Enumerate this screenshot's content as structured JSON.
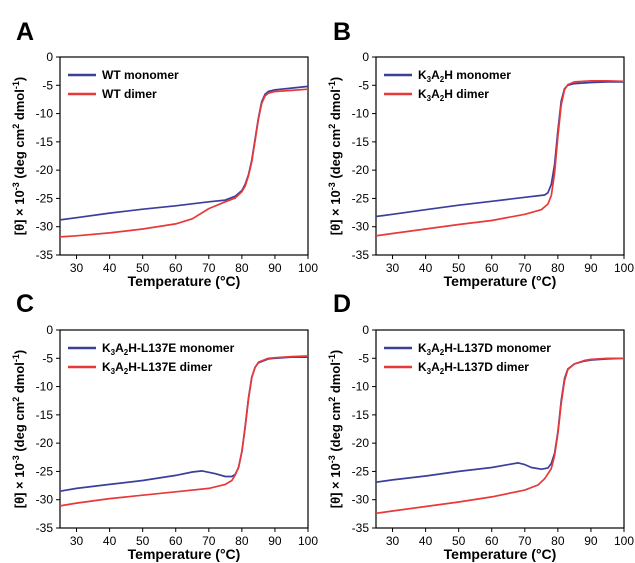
{
  "figure": {
    "ylabel_parts": {
      "theta": "[θ]",
      "times_ten": " × 10",
      "exp": "-3",
      "unit_open": " (deg cm",
      "cm_exp": "2",
      "unit_mid": " dmol",
      "mol_exp": "-1",
      "unit_close": ")"
    }
  },
  "chart_data": [
    {
      "type": "line",
      "panel_label": "A",
      "xlabel": "Temperature (°C)",
      "xlim": [
        25,
        100
      ],
      "ylim": [
        -35,
        0
      ],
      "x_ticks": [
        30,
        40,
        50,
        60,
        70,
        80,
        90,
        100
      ],
      "y_ticks": [
        0,
        -5,
        -10,
        -15,
        -20,
        -25,
        -30,
        -35
      ],
      "legend_position": "top-left",
      "series": [
        {
          "legend_parts": [
            "WT monomer"
          ],
          "color": "#3a3f9c",
          "points": [
            [
              25,
              -28.8
            ],
            [
              30,
              -28.4
            ],
            [
              40,
              -27.6
            ],
            [
              50,
              -26.9
            ],
            [
              60,
              -26.3
            ],
            [
              70,
              -25.6
            ],
            [
              75,
              -25.3
            ],
            [
              78,
              -24.6
            ],
            [
              80,
              -23.6
            ],
            [
              81,
              -22.5
            ],
            [
              82,
              -20.8
            ],
            [
              83,
              -18.2
            ],
            [
              84,
              -14.5
            ],
            [
              85,
              -10.8
            ],
            [
              86,
              -7.9
            ],
            [
              87,
              -6.6
            ],
            [
              88,
              -6.1
            ],
            [
              90,
              -5.8
            ],
            [
              95,
              -5.5
            ],
            [
              100,
              -5.2
            ]
          ]
        },
        {
          "legend_parts": [
            "WT dimer"
          ],
          "color": "#e8393a",
          "points": [
            [
              25,
              -31.8
            ],
            [
              30,
              -31.6
            ],
            [
              40,
              -31.1
            ],
            [
              50,
              -30.4
            ],
            [
              60,
              -29.5
            ],
            [
              65,
              -28.6
            ],
            [
              70,
              -26.8
            ],
            [
              75,
              -25.6
            ],
            [
              78,
              -24.9
            ],
            [
              80,
              -23.8
            ],
            [
              81,
              -22.8
            ],
            [
              82,
              -21.0
            ],
            [
              83,
              -18.5
            ],
            [
              84,
              -14.8
            ],
            [
              85,
              -11.0
            ],
            [
              86,
              -8.2
            ],
            [
              87,
              -6.9
            ],
            [
              88,
              -6.4
            ],
            [
              90,
              -6.1
            ],
            [
              95,
              -5.9
            ],
            [
              100,
              -5.7
            ]
          ]
        }
      ]
    },
    {
      "type": "line",
      "panel_label": "B",
      "xlabel": "Temperature (°C)",
      "xlim": [
        25,
        100
      ],
      "ylim": [
        -35,
        0
      ],
      "x_ticks": [
        30,
        40,
        50,
        60,
        70,
        80,
        90,
        100
      ],
      "y_ticks": [
        0,
        -5,
        -10,
        -15,
        -20,
        -25,
        -30,
        -35
      ],
      "legend_position": "top-left",
      "series": [
        {
          "legend_parts": [
            "K",
            "3",
            "A",
            "2",
            "H monomer"
          ],
          "color": "#3a3f9c",
          "points": [
            [
              25,
              -28.2
            ],
            [
              30,
              -27.8
            ],
            [
              40,
              -27.0
            ],
            [
              50,
              -26.2
            ],
            [
              60,
              -25.5
            ],
            [
              70,
              -24.8
            ],
            [
              76,
              -24.4
            ],
            [
              77,
              -24.0
            ],
            [
              78,
              -22.5
            ],
            [
              79,
              -19.0
            ],
            [
              80,
              -13.0
            ],
            [
              81,
              -7.8
            ],
            [
              82,
              -5.6
            ],
            [
              83,
              -5.0
            ],
            [
              85,
              -4.7
            ],
            [
              90,
              -4.5
            ],
            [
              95,
              -4.4
            ],
            [
              100,
              -4.4
            ]
          ]
        },
        {
          "legend_parts": [
            "K",
            "3",
            "A",
            "2",
            "H dimer"
          ],
          "color": "#e8393a",
          "points": [
            [
              25,
              -31.6
            ],
            [
              30,
              -31.2
            ],
            [
              40,
              -30.4
            ],
            [
              50,
              -29.6
            ],
            [
              60,
              -28.9
            ],
            [
              70,
              -27.8
            ],
            [
              75,
              -27.0
            ],
            [
              77,
              -26.0
            ],
            [
              78,
              -24.5
            ],
            [
              79,
              -20.5
            ],
            [
              80,
              -14.0
            ],
            [
              81,
              -8.5
            ],
            [
              82,
              -5.8
            ],
            [
              83,
              -4.9
            ],
            [
              85,
              -4.4
            ],
            [
              90,
              -4.2
            ],
            [
              95,
              -4.2
            ],
            [
              100,
              -4.3
            ]
          ]
        }
      ]
    },
    {
      "type": "line",
      "panel_label": "C",
      "xlabel": "Temperature (°C)",
      "xlim": [
        25,
        100
      ],
      "ylim": [
        -35,
        0
      ],
      "x_ticks": [
        30,
        40,
        50,
        60,
        70,
        80,
        90,
        100
      ],
      "y_ticks": [
        0,
        -5,
        -10,
        -15,
        -20,
        -25,
        -30,
        -35
      ],
      "legend_position": "top-left",
      "series": [
        {
          "legend_parts": [
            "K",
            "3",
            "A",
            "2",
            "H-L137E monomer"
          ],
          "color": "#3a3f9c",
          "points": [
            [
              25,
              -28.5
            ],
            [
              30,
              -28.0
            ],
            [
              40,
              -27.3
            ],
            [
              50,
              -26.6
            ],
            [
              60,
              -25.7
            ],
            [
              65,
              -25.1
            ],
            [
              68,
              -24.9
            ],
            [
              72,
              -25.4
            ],
            [
              75,
              -25.9
            ],
            [
              77,
              -25.9
            ],
            [
              78,
              -25.5
            ],
            [
              79,
              -24.3
            ],
            [
              80,
              -21.5
            ],
            [
              81,
              -17.0
            ],
            [
              82,
              -12.0
            ],
            [
              83,
              -8.3
            ],
            [
              84,
              -6.6
            ],
            [
              85,
              -5.8
            ],
            [
              88,
              -5.1
            ],
            [
              90,
              -5.0
            ],
            [
              95,
              -4.8
            ],
            [
              100,
              -4.8
            ]
          ]
        },
        {
          "legend_parts": [
            "K",
            "3",
            "A",
            "2",
            "H-L137E dimer"
          ],
          "color": "#e8393a",
          "points": [
            [
              25,
              -31.1
            ],
            [
              30,
              -30.6
            ],
            [
              40,
              -29.8
            ],
            [
              50,
              -29.2
            ],
            [
              60,
              -28.6
            ],
            [
              70,
              -28.0
            ],
            [
              75,
              -27.3
            ],
            [
              77,
              -26.6
            ],
            [
              78,
              -25.6
            ],
            [
              79,
              -24.2
            ],
            [
              80,
              -21.5
            ],
            [
              81,
              -17.2
            ],
            [
              82,
              -12.2
            ],
            [
              83,
              -8.4
            ],
            [
              84,
              -6.6
            ],
            [
              85,
              -5.7
            ],
            [
              88,
              -5.0
            ],
            [
              90,
              -4.9
            ],
            [
              95,
              -4.7
            ],
            [
              100,
              -4.6
            ]
          ]
        }
      ]
    },
    {
      "type": "line",
      "panel_label": "D",
      "xlabel": "Temperature (°C)",
      "xlim": [
        25,
        100
      ],
      "ylim": [
        -35,
        0
      ],
      "x_ticks": [
        30,
        40,
        50,
        60,
        70,
        80,
        90,
        100
      ],
      "y_ticks": [
        0,
        -5,
        -10,
        -15,
        -20,
        -25,
        -30,
        -35
      ],
      "legend_position": "top-left",
      "series": [
        {
          "legend_parts": [
            "K",
            "3",
            "A",
            "2",
            "H-L137D monomer"
          ],
          "color": "#3a3f9c",
          "points": [
            [
              25,
              -26.9
            ],
            [
              30,
              -26.5
            ],
            [
              40,
              -25.8
            ],
            [
              50,
              -25.0
            ],
            [
              60,
              -24.3
            ],
            [
              65,
              -23.8
            ],
            [
              68,
              -23.5
            ],
            [
              70,
              -23.8
            ],
            [
              72,
              -24.3
            ],
            [
              75,
              -24.6
            ],
            [
              77,
              -24.4
            ],
            [
              78,
              -23.6
            ],
            [
              79,
              -21.8
            ],
            [
              80,
              -18.0
            ],
            [
              81,
              -12.5
            ],
            [
              82,
              -8.6
            ],
            [
              83,
              -6.9
            ],
            [
              85,
              -6.0
            ],
            [
              88,
              -5.5
            ],
            [
              90,
              -5.3
            ],
            [
              95,
              -5.1
            ],
            [
              100,
              -5.0
            ]
          ]
        },
        {
          "legend_parts": [
            "K",
            "3",
            "A",
            "2",
            "H-L137D dimer"
          ],
          "color": "#e8393a",
          "points": [
            [
              25,
              -32.4
            ],
            [
              30,
              -32.0
            ],
            [
              40,
              -31.2
            ],
            [
              50,
              -30.4
            ],
            [
              60,
              -29.5
            ],
            [
              70,
              -28.3
            ],
            [
              74,
              -27.4
            ],
            [
              76,
              -26.3
            ],
            [
              78,
              -24.5
            ],
            [
              79,
              -22.2
            ],
            [
              80,
              -18.3
            ],
            [
              81,
              -13.0
            ],
            [
              82,
              -9.0
            ],
            [
              83,
              -7.0
            ],
            [
              85,
              -6.0
            ],
            [
              88,
              -5.4
            ],
            [
              90,
              -5.2
            ],
            [
              95,
              -5.0
            ],
            [
              100,
              -5.0
            ]
          ]
        }
      ]
    }
  ]
}
